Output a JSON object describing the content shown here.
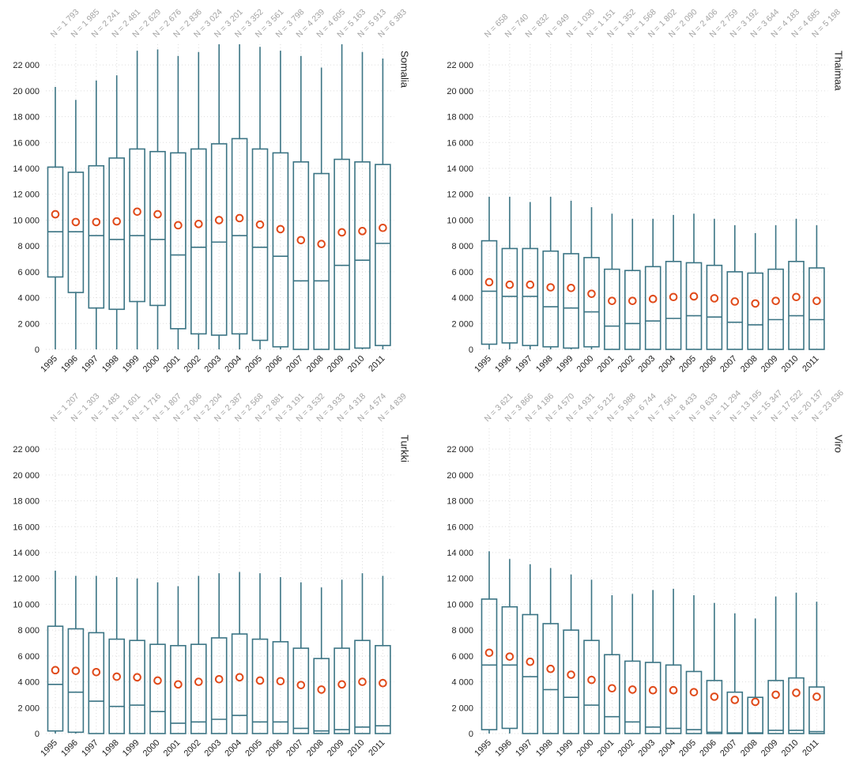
{
  "chart_data": [
    {
      "type": "boxplot",
      "panel_title": "Somalia",
      "categories": [
        "1995",
        "1996",
        "1997",
        "1998",
        "1999",
        "2000",
        "2001",
        "2002",
        "2003",
        "2004",
        "2005",
        "2006",
        "2007",
        "2008",
        "2009",
        "2010",
        "2011"
      ],
      "n_labels": [
        "N = 1 793",
        "N = 1 985",
        "N = 2 241",
        "N = 2 481",
        "N = 2 629",
        "N = 2 676",
        "N = 2 836",
        "N = 3 024",
        "N = 3 201",
        "N = 3 352",
        "N = 3 561",
        "N = 3 798",
        "N = 4 239",
        "N = 4 605",
        "N = 5 163",
        "N = 5 913",
        "N = 6 383"
      ],
      "boxes": [
        {
          "whisker_low": 0,
          "q1": 5600,
          "median": 9100,
          "q3": 14100,
          "whisker_high": 20300,
          "mean": 10450
        },
        {
          "whisker_low": 0,
          "q1": 4400,
          "median": 9100,
          "q3": 13700,
          "whisker_high": 19300,
          "mean": 9850
        },
        {
          "whisker_low": 0,
          "q1": 3200,
          "median": 8800,
          "q3": 14200,
          "whisker_high": 20800,
          "mean": 9850
        },
        {
          "whisker_low": 0,
          "q1": 3100,
          "median": 8500,
          "q3": 14800,
          "whisker_high": 21200,
          "mean": 9900
        },
        {
          "whisker_low": 0,
          "q1": 3700,
          "median": 8800,
          "q3": 15500,
          "whisker_high": 23100,
          "mean": 10650
        },
        {
          "whisker_low": 0,
          "q1": 3400,
          "median": 8500,
          "q3": 15300,
          "whisker_high": 23200,
          "mean": 10450
        },
        {
          "whisker_low": 0,
          "q1": 1600,
          "median": 7300,
          "q3": 15200,
          "whisker_high": 22700,
          "mean": 9600
        },
        {
          "whisker_low": 0,
          "q1": 1200,
          "median": 7900,
          "q3": 15500,
          "whisker_high": 23000,
          "mean": 9700
        },
        {
          "whisker_low": 0,
          "q1": 1100,
          "median": 8300,
          "q3": 15900,
          "whisker_high": 23600,
          "mean": 10000
        },
        {
          "whisker_low": 0,
          "q1": 1200,
          "median": 8800,
          "q3": 16300,
          "whisker_high": 23600,
          "mean": 10150
        },
        {
          "whisker_low": 0,
          "q1": 700,
          "median": 7900,
          "q3": 15500,
          "whisker_high": 23400,
          "mean": 9650
        },
        {
          "whisker_low": 0,
          "q1": 200,
          "median": 7200,
          "q3": 15200,
          "whisker_high": 23100,
          "mean": 9300
        },
        {
          "whisker_low": 0,
          "q1": 0,
          "median": 5300,
          "q3": 14500,
          "whisker_high": 22700,
          "mean": 8450
        },
        {
          "whisker_low": 0,
          "q1": 0,
          "median": 5300,
          "q3": 13600,
          "whisker_high": 21800,
          "mean": 8150
        },
        {
          "whisker_low": 0,
          "q1": 0,
          "median": 6500,
          "q3": 14700,
          "whisker_high": 23600,
          "mean": 9050
        },
        {
          "whisker_low": 0,
          "q1": 100,
          "median": 6900,
          "q3": 14500,
          "whisker_high": 23000,
          "mean": 9150
        },
        {
          "whisker_low": 0,
          "q1": 300,
          "median": 8200,
          "q3": 14300,
          "whisker_high": 22500,
          "mean": 9400
        }
      ]
    },
    {
      "type": "boxplot",
      "panel_title": "Thaimaa",
      "categories": [
        "1995",
        "1996",
        "1997",
        "1998",
        "1999",
        "2000",
        "2001",
        "2002",
        "2003",
        "2004",
        "2005",
        "2006",
        "2007",
        "2008",
        "2009",
        "2010",
        "2011"
      ],
      "n_labels": [
        "N = 658",
        "N = 740",
        "N = 832",
        "N = 949",
        "N = 1 030",
        "N = 1 151",
        "N = 1 352",
        "N = 1 568",
        "N = 1 802",
        "N = 2 090",
        "N = 2 406",
        "N = 2 759",
        "N = 3 192",
        "N = 3 644",
        "N = 4 183",
        "N = 4 685",
        "N = 5 198"
      ],
      "boxes": [
        {
          "whisker_low": 0,
          "q1": 400,
          "median": 4500,
          "q3": 8400,
          "whisker_high": 11800,
          "mean": 5200
        },
        {
          "whisker_low": 0,
          "q1": 500,
          "median": 4100,
          "q3": 7800,
          "whisker_high": 11800,
          "mean": 5000
        },
        {
          "whisker_low": 0,
          "q1": 300,
          "median": 4100,
          "q3": 7800,
          "whisker_high": 11400,
          "mean": 5000
        },
        {
          "whisker_low": 0,
          "q1": 200,
          "median": 3300,
          "q3": 7600,
          "whisker_high": 11800,
          "mean": 4800
        },
        {
          "whisker_low": 0,
          "q1": 100,
          "median": 3200,
          "q3": 7400,
          "whisker_high": 11500,
          "mean": 4750
        },
        {
          "whisker_low": 0,
          "q1": 200,
          "median": 2900,
          "q3": 7100,
          "whisker_high": 11000,
          "mean": 4300
        },
        {
          "whisker_low": 0,
          "q1": 0,
          "median": 1800,
          "q3": 6200,
          "whisker_high": 10500,
          "mean": 3750
        },
        {
          "whisker_low": 0,
          "q1": 0,
          "median": 2000,
          "q3": 6100,
          "whisker_high": 10100,
          "mean": 3750
        },
        {
          "whisker_low": 0,
          "q1": 0,
          "median": 2200,
          "q3": 6400,
          "whisker_high": 10100,
          "mean": 3900
        },
        {
          "whisker_low": 0,
          "q1": 0,
          "median": 2400,
          "q3": 6800,
          "whisker_high": 10400,
          "mean": 4050
        },
        {
          "whisker_low": 0,
          "q1": 0,
          "median": 2600,
          "q3": 6700,
          "whisker_high": 10500,
          "mean": 4100
        },
        {
          "whisker_low": 0,
          "q1": 0,
          "median": 2500,
          "q3": 6500,
          "whisker_high": 10100,
          "mean": 3950
        },
        {
          "whisker_low": 0,
          "q1": 0,
          "median": 2100,
          "q3": 6000,
          "whisker_high": 9600,
          "mean": 3700
        },
        {
          "whisker_low": 0,
          "q1": 0,
          "median": 1900,
          "q3": 5900,
          "whisker_high": 9000,
          "mean": 3550
        },
        {
          "whisker_low": 0,
          "q1": 0,
          "median": 2300,
          "q3": 6200,
          "whisker_high": 9600,
          "mean": 3750
        },
        {
          "whisker_low": 0,
          "q1": 0,
          "median": 2600,
          "q3": 6800,
          "whisker_high": 10100,
          "mean": 4050
        },
        {
          "whisker_low": 0,
          "q1": 0,
          "median": 2300,
          "q3": 6300,
          "whisker_high": 9600,
          "mean": 3750
        }
      ]
    },
    {
      "type": "boxplot",
      "panel_title": "Turkki",
      "categories": [
        "1995",
        "1996",
        "1997",
        "1998",
        "1999",
        "2000",
        "2001",
        "2002",
        "2003",
        "2004",
        "2005",
        "2006",
        "2007",
        "2008",
        "2009",
        "2010",
        "2011"
      ],
      "n_labels": [
        "N = 1 207",
        "N = 1 303",
        "N = 1 483",
        "N = 1 601",
        "N = 1 716",
        "N = 1 807",
        "N = 2 006",
        "N = 2 204",
        "N = 2 387",
        "N = 2 568",
        "N = 2 881",
        "N = 3 191",
        "N = 3 532",
        "N = 3 933",
        "N = 4 318",
        "N = 4 574",
        "N = 4 839"
      ],
      "boxes": [
        {
          "whisker_low": 0,
          "q1": 200,
          "median": 3800,
          "q3": 8300,
          "whisker_high": 12600,
          "mean": 4900
        },
        {
          "whisker_low": 0,
          "q1": 100,
          "median": 3200,
          "q3": 8100,
          "whisker_high": 12200,
          "mean": 4850
        },
        {
          "whisker_low": 0,
          "q1": 0,
          "median": 2500,
          "q3": 7800,
          "whisker_high": 12200,
          "mean": 4750
        },
        {
          "whisker_low": 0,
          "q1": 0,
          "median": 2100,
          "q3": 7300,
          "whisker_high": 12100,
          "mean": 4400
        },
        {
          "whisker_low": 0,
          "q1": 0,
          "median": 2200,
          "q3": 7200,
          "whisker_high": 12000,
          "mean": 4350
        },
        {
          "whisker_low": 0,
          "q1": 0,
          "median": 1700,
          "q3": 6900,
          "whisker_high": 11700,
          "mean": 4100
        },
        {
          "whisker_low": 0,
          "q1": 0,
          "median": 800,
          "q3": 6800,
          "whisker_high": 11400,
          "mean": 3800
        },
        {
          "whisker_low": 0,
          "q1": 0,
          "median": 900,
          "q3": 6900,
          "whisker_high": 12200,
          "mean": 4000
        },
        {
          "whisker_low": 0,
          "q1": 0,
          "median": 1100,
          "q3": 7400,
          "whisker_high": 12400,
          "mean": 4200
        },
        {
          "whisker_low": 0,
          "q1": 0,
          "median": 1400,
          "q3": 7700,
          "whisker_high": 12500,
          "mean": 4350
        },
        {
          "whisker_low": 0,
          "q1": 0,
          "median": 900,
          "q3": 7300,
          "whisker_high": 12400,
          "mean": 4100
        },
        {
          "whisker_low": 0,
          "q1": 0,
          "median": 900,
          "q3": 7100,
          "whisker_high": 12100,
          "mean": 4050
        },
        {
          "whisker_low": 0,
          "q1": 0,
          "median": 400,
          "q3": 6600,
          "whisker_high": 11700,
          "mean": 3750
        },
        {
          "whisker_low": 0,
          "q1": 0,
          "median": 200,
          "q3": 5800,
          "whisker_high": 11300,
          "mean": 3400
        },
        {
          "whisker_low": 0,
          "q1": 0,
          "median": 300,
          "q3": 6600,
          "whisker_high": 11900,
          "mean": 3800
        },
        {
          "whisker_low": 0,
          "q1": 0,
          "median": 500,
          "q3": 7200,
          "whisker_high": 12400,
          "mean": 4000
        },
        {
          "whisker_low": 0,
          "q1": 0,
          "median": 600,
          "q3": 6800,
          "whisker_high": 12200,
          "mean": 3900
        }
      ]
    },
    {
      "type": "boxplot",
      "panel_title": "Viro",
      "categories": [
        "1995",
        "1996",
        "1997",
        "1998",
        "1999",
        "2000",
        "2001",
        "2002",
        "2003",
        "2004",
        "2005",
        "2006",
        "2007",
        "2008",
        "2009",
        "2010",
        "2011"
      ],
      "n_labels": [
        "N = 3 621",
        "N = 3 866",
        "N = 4 186",
        "N = 4 570",
        "N = 4 931",
        "N = 5 212",
        "N = 5 988",
        "N = 6 744",
        "N = 7 561",
        "N = 8 433",
        "N = 9 633",
        "N = 11 294",
        "N = 13 195",
        "N = 15 347",
        "N = 17 522",
        "N = 20 137",
        "N = 23 636"
      ],
      "boxes": [
        {
          "whisker_low": 0,
          "q1": 300,
          "median": 5300,
          "q3": 10400,
          "whisker_high": 14100,
          "mean": 6250
        },
        {
          "whisker_low": 0,
          "q1": 400,
          "median": 5300,
          "q3": 9800,
          "whisker_high": 13500,
          "mean": 5950
        },
        {
          "whisker_low": 0,
          "q1": 0,
          "median": 4400,
          "q3": 9200,
          "whisker_high": 13100,
          "mean": 5550
        },
        {
          "whisker_low": 0,
          "q1": 0,
          "median": 3400,
          "q3": 8500,
          "whisker_high": 12800,
          "mean": 5000
        },
        {
          "whisker_low": 0,
          "q1": 0,
          "median": 2800,
          "q3": 8000,
          "whisker_high": 12300,
          "mean": 4550
        },
        {
          "whisker_low": 0,
          "q1": 0,
          "median": 2200,
          "q3": 7200,
          "whisker_high": 11900,
          "mean": 4150
        },
        {
          "whisker_low": 0,
          "q1": 0,
          "median": 1300,
          "q3": 6100,
          "whisker_high": 10700,
          "mean": 3500
        },
        {
          "whisker_low": 0,
          "q1": 0,
          "median": 900,
          "q3": 5600,
          "whisker_high": 10800,
          "mean": 3400
        },
        {
          "whisker_low": 0,
          "q1": 0,
          "median": 500,
          "q3": 5500,
          "whisker_high": 11100,
          "mean": 3350
        },
        {
          "whisker_low": 0,
          "q1": 0,
          "median": 400,
          "q3": 5300,
          "whisker_high": 11200,
          "mean": 3350
        },
        {
          "whisker_low": 0,
          "q1": 0,
          "median": 300,
          "q3": 4800,
          "whisker_high": 10700,
          "mean": 3200
        },
        {
          "whisker_low": 0,
          "q1": 0,
          "median": 100,
          "q3": 4100,
          "whisker_high": 10100,
          "mean": 2850
        },
        {
          "whisker_low": 0,
          "q1": 0,
          "median": 50,
          "q3": 3200,
          "whisker_high": 9300,
          "mean": 2600
        },
        {
          "whisker_low": 0,
          "q1": 0,
          "median": 50,
          "q3": 2800,
          "whisker_high": 8900,
          "mean": 2450
        },
        {
          "whisker_low": 0,
          "q1": 0,
          "median": 250,
          "q3": 4100,
          "whisker_high": 10600,
          "mean": 3000
        },
        {
          "whisker_low": 0,
          "q1": 0,
          "median": 250,
          "q3": 4300,
          "whisker_high": 10900,
          "mean": 3150
        },
        {
          "whisker_low": 0,
          "q1": 0,
          "median": 150,
          "q3": 3600,
          "whisker_high": 10200,
          "mean": 2850
        }
      ]
    }
  ],
  "y_axis": {
    "ylim": [
      0,
      23600
    ],
    "ticks": [
      0,
      2000,
      4000,
      6000,
      8000,
      10000,
      12000,
      14000,
      16000,
      18000,
      20000,
      22000
    ],
    "tick_labels": [
      "0",
      "2 000",
      "4 000",
      "6 000",
      "8 000",
      "10 000",
      "12 000",
      "14 000",
      "16 000",
      "18 000",
      "20 000",
      "22 000"
    ]
  },
  "grid": "dotted",
  "colors": {
    "box": "#3b7484",
    "mean_marker": "#e04a1a",
    "n_label": "#a3a3a3",
    "grid": "#dddddd",
    "text": "#222222"
  }
}
